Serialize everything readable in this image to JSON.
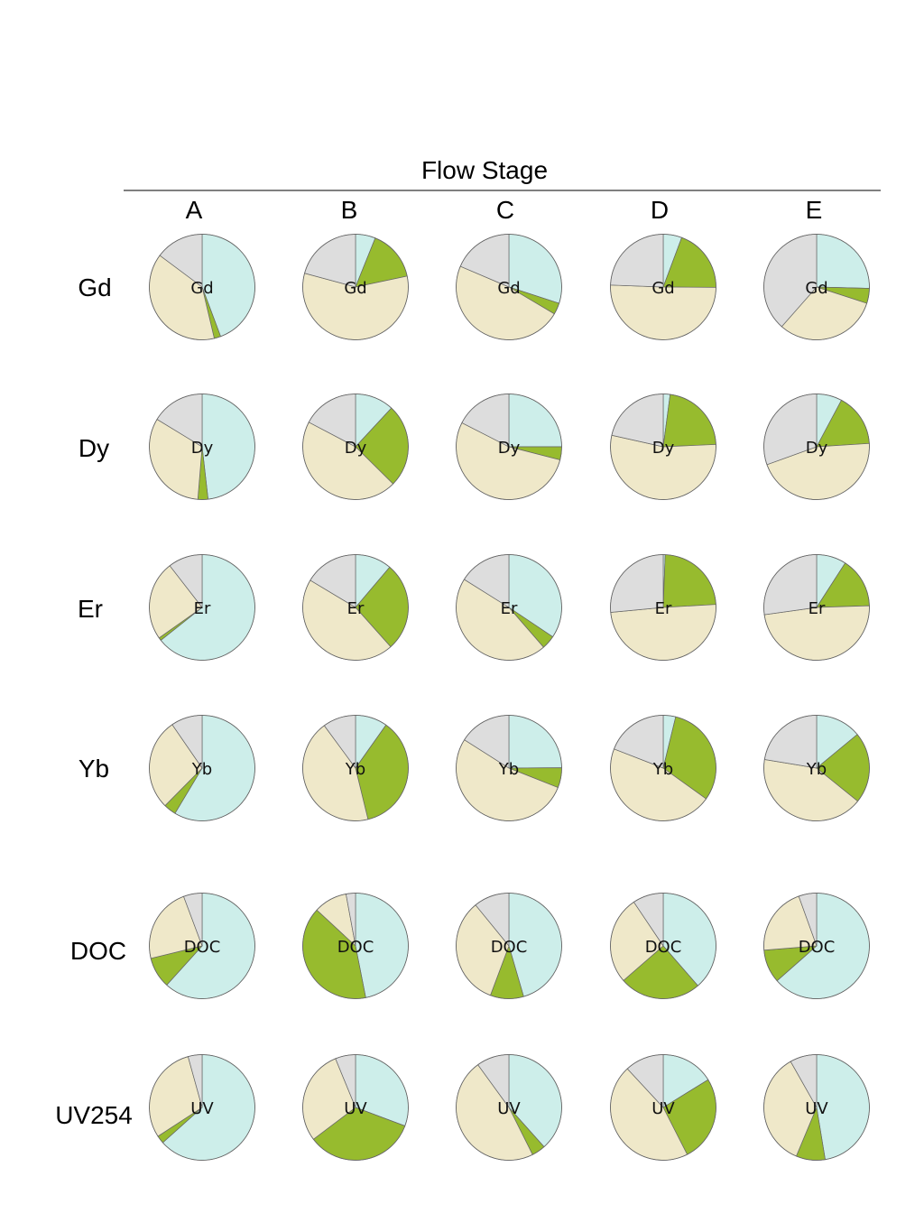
{
  "chart_data": {
    "type": "pie",
    "title": "Flow Stage",
    "columns": [
      "A",
      "B",
      "C",
      "D",
      "E"
    ],
    "rows": [
      "Gd",
      "Dy",
      "Er",
      "Yb",
      "DOC",
      "UV254"
    ],
    "pie_labels": [
      "Gd",
      "Dy",
      "Er",
      "Yb",
      "DOC",
      "UV"
    ],
    "slice_colors": [
      "#cdeeea",
      "#97bb2e",
      "#efe8c9",
      "#dddddd"
    ],
    "border_color": "#666666",
    "values": [
      [
        [
          44.3,
          2.0,
          38.9,
          14.8
        ],
        [
          6.1,
          15.6,
          57.5,
          20.8
        ],
        [
          30.0,
          3.5,
          47.9,
          18.6
        ],
        [
          5.7,
          19.4,
          50.5,
          24.4
        ],
        [
          25.4,
          4.6,
          31.5,
          38.5
        ]
      ],
      [
        [
          48.2,
          3.1,
          32.4,
          16.3
        ],
        [
          11.9,
          25.5,
          45.3,
          17.3
        ],
        [
          25.0,
          4.0,
          53.5,
          17.5
        ],
        [
          2.1,
          22.2,
          54.2,
          21.5
        ],
        [
          7.8,
          16.2,
          45.5,
          30.5
        ]
      ],
      [
        [
          64.3,
          0.9,
          24.3,
          10.5
        ],
        [
          11.2,
          27.2,
          45.2,
          16.4
        ],
        [
          34.4,
          4.2,
          45.3,
          16.1
        ],
        [
          0.6,
          23.5,
          49.4,
          26.5
        ],
        [
          9.1,
          15.4,
          48.3,
          27.2
        ]
      ],
      [
        [
          58.6,
          3.8,
          28.0,
          9.6
        ],
        [
          9.8,
          36.4,
          43.7,
          10.1
        ],
        [
          24.9,
          6.1,
          53.0,
          16.0
        ],
        [
          3.8,
          31.1,
          46.0,
          19.1
        ],
        [
          14.0,
          21.8,
          41.8,
          22.4
        ]
      ],
      [
        [
          61.7,
          9.5,
          23.1,
          5.7
        ],
        [
          46.9,
          40.0,
          10.2,
          2.9
        ],
        [
          45.5,
          10.2,
          33.4,
          10.9
        ],
        [
          38.6,
          25.0,
          27.0,
          9.4
        ],
        [
          63.5,
          10.2,
          20.8,
          5.5
        ]
      ],
      [
        [
          63.4,
          2.4,
          29.9,
          4.3
        ],
        [
          30.7,
          34.0,
          29.1,
          6.2
        ],
        [
          38.4,
          4.2,
          47.4,
          10.0
        ],
        [
          16.2,
          26.3,
          45.6,
          11.9
        ],
        [
          47.4,
          8.9,
          35.5,
          8.2
        ]
      ]
    ]
  }
}
